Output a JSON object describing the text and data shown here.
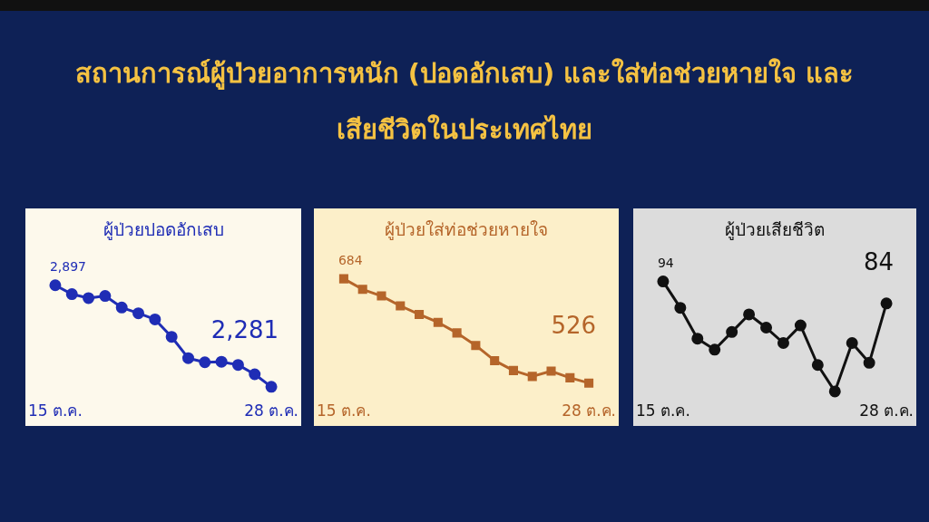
{
  "chart_data": [
    {
      "type": "other",
      "title": "สถานการณ์ผู้ป่วยอาการหนัก (ปอดอักเสบ) และใส่ท่อช่วยหายใจ และเสียชีวิตในประเทศไทย"
    },
    {
      "type": "line",
      "title": "ผู้ป่วยปอดอักเสบ",
      "categories": [
        "15 ต.ค.",
        null,
        null,
        null,
        null,
        null,
        null,
        null,
        null,
        null,
        null,
        null,
        null,
        "28 ต.ค."
      ],
      "marker": "circle",
      "tick_labels": "x",
      "series": [
        {
          "color": "#1f2db5",
          "values": [
            2897,
            2843,
            2819,
            2832,
            2762,
            2727,
            2690,
            2584,
            2455,
            2430,
            2433,
            2414,
            2357,
            2281
          ],
          "value_labels": [
            "2,897",
            null,
            null,
            null,
            null,
            null,
            null,
            null,
            null,
            null,
            null,
            null,
            null,
            "2,281"
          ]
        }
      ]
    },
    {
      "type": "line",
      "title": "ผู้ป่วยใส่ท่อช่วยหายใจ",
      "categories": [
        "15 ต.ค.",
        null,
        null,
        null,
        null,
        null,
        null,
        null,
        null,
        null,
        null,
        null,
        null,
        "28 ต.ค."
      ],
      "marker": "square",
      "tick_labels": "x",
      "series": [
        {
          "color": "#b5652a",
          "values": [
            684,
            668,
            658,
            643,
            630,
            618,
            602,
            583,
            560,
            545,
            536,
            544,
            534,
            526
          ],
          "value_labels": [
            "684",
            null,
            null,
            null,
            null,
            null,
            null,
            null,
            null,
            null,
            null,
            null,
            null,
            "526"
          ]
        }
      ]
    },
    {
      "type": "line",
      "title": "ผู้ป่วยเสียชีวิต",
      "categories": [
        "15 ต.ค.",
        null,
        null,
        null,
        null,
        null,
        null,
        null,
        null,
        null,
        null,
        null,
        null,
        "28 ต.ค."
      ],
      "marker": "circle",
      "tick_labels": "x",
      "series": [
        {
          "color": "#111111",
          "values": [
            94,
            82,
            68,
            63,
            71,
            79,
            73,
            66,
            74,
            56,
            44,
            66,
            57,
            84
          ],
          "value_labels": [
            "94",
            null,
            null,
            null,
            null,
            null,
            null,
            null,
            null,
            null,
            null,
            null,
            null,
            "84"
          ]
        }
      ]
    }
  ]
}
